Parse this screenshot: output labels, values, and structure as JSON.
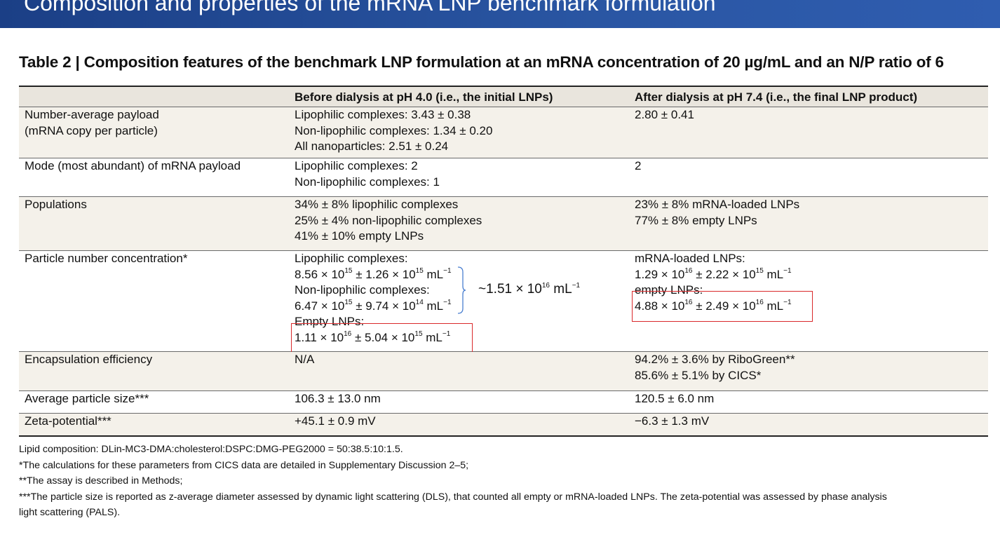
{
  "banner": {
    "title": "Composition and properties of the mRNA LNP benchmark formulation"
  },
  "table": {
    "title": "Table 2 | Composition features of the benchmark LNP formulation at an mRNA concentration of 20 µg/mL and an N/P ratio of 6",
    "headers": [
      "",
      "Before dialysis at pH 4.0 (i.e., the initial LNPs)",
      "After dialysis at pH 7.4 (i.e., the final LNP product)"
    ],
    "rows": {
      "payload": {
        "label": [
          "Number-average payload",
          "(mRNA copy per particle)"
        ],
        "before": [
          "Lipophilic complexes: 3.43 ± 0.38",
          "Non-lipophilic complexes: 1.34 ± 0.20",
          "All nanoparticles: 2.51 ± 0.24"
        ],
        "after": [
          "2.80 ± 0.41"
        ]
      },
      "mode": {
        "label": [
          "Mode (most abundant) of mRNA payload"
        ],
        "before": [
          "Lipophilic complexes: 2",
          "Non-lipophilic complexes: 1"
        ],
        "after": [
          "2"
        ]
      },
      "populations": {
        "label": [
          "Populations"
        ],
        "before": [
          "34% ± 8% lipophilic complexes",
          "25% ± 4% non-lipophilic complexes",
          "41% ± 10% empty LNPs"
        ],
        "after": [
          "23% ± 8% mRNA-loaded LNPs",
          "77% ± 8% empty LNPs"
        ]
      },
      "concentration": {
        "label": [
          "Particle number concentration*"
        ],
        "before_lipo_label": "Lipophilic complexes:",
        "before_lipo": {
          "a": "8.56 × 10",
          "a_exp": "15",
          "b": " ± 1.26 × 10",
          "b_exp": "15",
          "unit": " mL",
          "unit_exp": "−1"
        },
        "before_nonlipo_label": "Non-lipophilic complexes:",
        "before_nonlipo": {
          "a": "6.47 × 10",
          "a_exp": "15",
          "b": " ± 9.74 × 10",
          "b_exp": "14",
          "unit": " mL",
          "unit_exp": "−1"
        },
        "before_empty_label": "Empty LNPs:",
        "before_empty": {
          "a": "1.11 × 10",
          "a_exp": "16",
          "b": " ± 5.04 × 10",
          "b_exp": "15",
          "unit": " mL",
          "unit_exp": "−1"
        },
        "approx": {
          "a": "~1.51 × 10",
          "a_exp": "16",
          "unit": " mL",
          "unit_exp": "−1"
        },
        "after_loaded_label": "mRNA-loaded LNPs:",
        "after_loaded": {
          "a": "1.29 × 10",
          "a_exp": "16",
          "b": " ± 2.22 × 10",
          "b_exp": "15",
          "unit": " mL",
          "unit_exp": "−1"
        },
        "after_empty_label": "empty LNPs:",
        "after_empty": {
          "a": "4.88 × 10",
          "a_exp": "16",
          "b": " ± 2.49 × 10",
          "b_exp": "16",
          "unit": " mL",
          "unit_exp": "−1"
        }
      },
      "encapsulation": {
        "label": [
          "Encapsulation efficiency"
        ],
        "before": [
          "N/A"
        ],
        "after": [
          "94.2% ± 3.6% by RiboGreen**",
          "85.6% ± 5.1% by CICS*"
        ]
      },
      "size": {
        "label": [
          "Average particle size***"
        ],
        "before": [
          "106.3 ± 13.0 nm"
        ],
        "after": [
          "120.5 ± 6.0 nm"
        ]
      },
      "zeta": {
        "label": [
          "Zeta-potential***"
        ],
        "before": [
          "+45.1 ± 0.9 mV"
        ],
        "after": [
          "−6.3 ± 1.3 mV"
        ]
      }
    }
  },
  "notes": [
    "Lipid composition: DLin-MC3-DMA:cholesterol:DSPC:DMG-PEG2000 = 50:38.5:10:1.5.",
    "*The calculations for these parameters from CICS data are detailed in Supplementary Discussion 2–5;",
    "**The assay is described in Methods;",
    "***The particle size is reported as z-average diameter assessed by dynamic light scattering (DLS), that counted all empty or mRNA-loaded LNPs. The zeta-potential was assessed by phase analysis",
    "light scattering (PALS)."
  ],
  "colors": {
    "banner": "#1b3f86",
    "highlight": "#d9292b",
    "header_bg": "#e9e5dd",
    "row_tint": "#f4f1ea"
  }
}
